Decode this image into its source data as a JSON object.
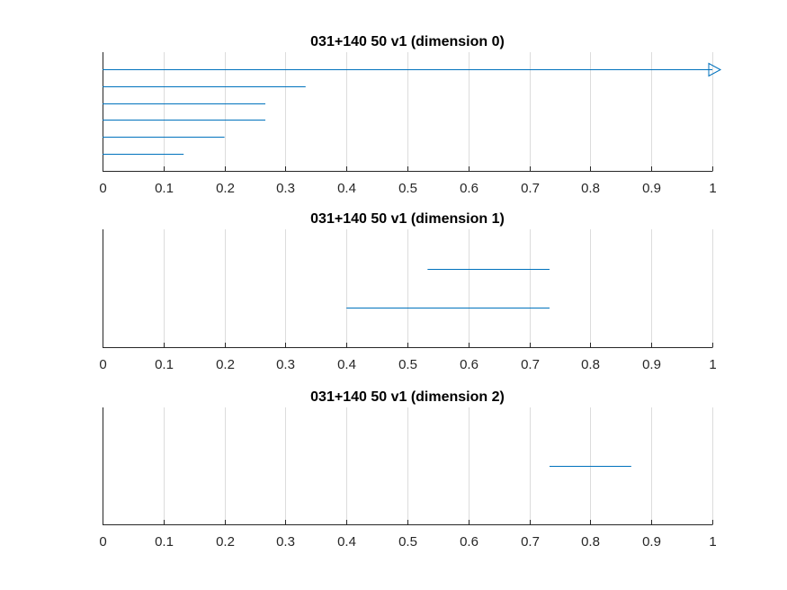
{
  "chart_data": [
    {
      "type": "barcode",
      "title": "031+140 50 v1 (dimension 0)",
      "xlim": [
        0,
        1
      ],
      "xticks": [
        0,
        0.1,
        0.2,
        0.3,
        0.4,
        0.5,
        0.6,
        0.7,
        0.8,
        0.9,
        1
      ],
      "xtick_labels": [
        "0",
        "0.1",
        "0.2",
        "0.3",
        "0.4",
        "0.5",
        "0.6",
        "0.7",
        "0.8",
        "0.9",
        "1"
      ],
      "grid": true,
      "color": "#0072BD",
      "intervals": [
        {
          "birth": 0,
          "death": 1,
          "infinite": true
        },
        {
          "birth": 0,
          "death": 0.333
        },
        {
          "birth": 0,
          "death": 0.267
        },
        {
          "birth": 0,
          "death": 0.267
        },
        {
          "birth": 0,
          "death": 0.2
        },
        {
          "birth": 0,
          "death": 0.133
        }
      ]
    },
    {
      "type": "barcode",
      "title": "031+140 50 v1 (dimension 1)",
      "xlim": [
        0,
        1
      ],
      "xticks": [
        0,
        0.1,
        0.2,
        0.3,
        0.4,
        0.5,
        0.6,
        0.7,
        0.8,
        0.9,
        1
      ],
      "xtick_labels": [
        "0",
        "0.1",
        "0.2",
        "0.3",
        "0.4",
        "0.5",
        "0.6",
        "0.7",
        "0.8",
        "0.9",
        "1"
      ],
      "grid": true,
      "color": "#0072BD",
      "intervals": [
        {
          "birth": 0.533,
          "death": 0.733
        },
        {
          "birth": 0.4,
          "death": 0.733
        }
      ]
    },
    {
      "type": "barcode",
      "title": "031+140 50 v1 (dimension 2)",
      "xlim": [
        0,
        1
      ],
      "xticks": [
        0,
        0.1,
        0.2,
        0.3,
        0.4,
        0.5,
        0.6,
        0.7,
        0.8,
        0.9,
        1
      ],
      "xtick_labels": [
        "0",
        "0.1",
        "0.2",
        "0.3",
        "0.4",
        "0.5",
        "0.6",
        "0.7",
        "0.8",
        "0.9",
        "1"
      ],
      "grid": true,
      "color": "#0072BD",
      "intervals": [
        {
          "birth": 0.733,
          "death": 0.867
        }
      ]
    }
  ]
}
